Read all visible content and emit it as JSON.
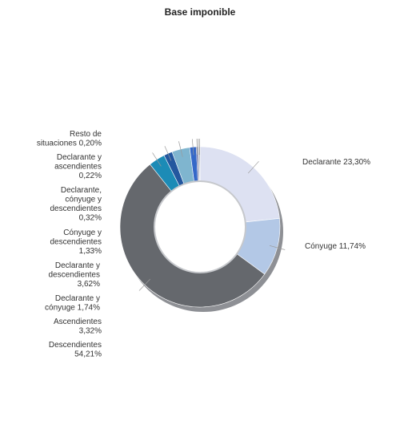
{
  "chart_data": {
    "type": "pie",
    "title": "Base imponible",
    "donut": true,
    "categories": [
      "Declarante",
      "Cónyuge",
      "Descendientes",
      "Ascendientes",
      "Declarante y cónyuge",
      "Declarante y descendientes",
      "Cónyuge y descendientes",
      "Declarante, cónyuge y descendientes",
      "Declarante y ascendientes",
      "Resto de situaciones"
    ],
    "values": [
      23.3,
      11.74,
      54.21,
      3.32,
      1.74,
      3.62,
      1.33,
      0.32,
      0.22,
      0.2
    ],
    "value_labels": [
      "23,30%",
      "11,74%",
      "54,21%",
      "3,32%",
      "1,74%",
      "3,62%",
      "1,33%",
      "0,32%",
      "0,22%",
      "0,20%"
    ],
    "colors": [
      "#dde1f2",
      "#b3c8e6",
      "#65686d",
      "#1c8bb6",
      "#23579f",
      "#7fb5cf",
      "#3568c8",
      "#4a4f8c",
      "#9aa6b8",
      "#8c8c8c"
    ],
    "unit": "%"
  }
}
